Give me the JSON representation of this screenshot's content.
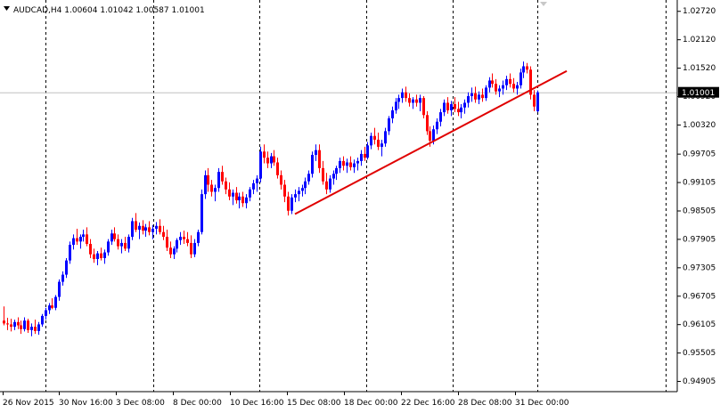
{
  "chart_header": {
    "title": "AUDCAD,H4  1.00604 1.01042 1.00587 1.01001"
  },
  "colors": {
    "bull": "#0000ff",
    "bear": "#ff0000",
    "trendline": "#e00000",
    "grid": "#000000",
    "current_price_line": "#c0c0c0",
    "current_price_box": "#000000",
    "background": "#ffffff"
  },
  "chart_data": {
    "type": "candlestick",
    "symbol": "AUDCAD",
    "timeframe": "H4",
    "current_price": "1.01001",
    "ylim": [
      0.9468,
      1.0295
    ],
    "y_ticks": [
      "1.02720",
      "1.02120",
      "1.01520",
      "1.00920",
      "1.00320",
      "0.99705",
      "0.99105",
      "0.98505",
      "0.97905",
      "0.97305",
      "0.96705",
      "0.96105",
      "0.95505",
      "0.94905"
    ],
    "y_tick_values": [
      1.0272,
      1.0212,
      1.0152,
      1.0092,
      1.0032,
      0.99705,
      0.99105,
      0.98505,
      0.97905,
      0.97305,
      0.96705,
      0.96105,
      0.95505,
      0.94905
    ],
    "x_ticks": [
      "26 Nov 2015",
      "30 Nov 16:00",
      "3 Dec 08:00",
      "8 Dec 00:00",
      "10 Dec 16:00",
      "15 Dec 08:00",
      "18 Dec 00:00",
      "22 Dec 16:00",
      "28 Dec 08:00",
      "31 Dec 00:00"
    ],
    "trendline": {
      "start": [
        0.9843
      ],
      "end": [
        1.0145
      ]
    },
    "candles": [
      {
        "o": 0.9618,
        "h": 0.9648,
        "l": 0.9608,
        "c": 0.9612
      },
      {
        "o": 0.9612,
        "h": 0.9624,
        "l": 0.9598,
        "c": 0.961
      },
      {
        "o": 0.961,
        "h": 0.9622,
        "l": 0.9595,
        "c": 0.9605
      },
      {
        "o": 0.9605,
        "h": 0.962,
        "l": 0.9598,
        "c": 0.9615
      },
      {
        "o": 0.9615,
        "h": 0.9625,
        "l": 0.96,
        "c": 0.9608
      },
      {
        "o": 0.9608,
        "h": 0.9618,
        "l": 0.959,
        "c": 0.96
      },
      {
        "o": 0.96,
        "h": 0.9625,
        "l": 0.9595,
        "c": 0.9618
      },
      {
        "o": 0.9618,
        "h": 0.9622,
        "l": 0.9592,
        "c": 0.9598
      },
      {
        "o": 0.9598,
        "h": 0.9612,
        "l": 0.9585,
        "c": 0.9605
      },
      {
        "o": 0.9605,
        "h": 0.962,
        "l": 0.959,
        "c": 0.9596
      },
      {
        "o": 0.9596,
        "h": 0.9615,
        "l": 0.9588,
        "c": 0.961
      },
      {
        "o": 0.961,
        "h": 0.9632,
        "l": 0.9605,
        "c": 0.9628
      },
      {
        "o": 0.9628,
        "h": 0.9645,
        "l": 0.962,
        "c": 0.964
      },
      {
        "o": 0.964,
        "h": 0.9655,
        "l": 0.9632,
        "c": 0.965
      },
      {
        "o": 0.965,
        "h": 0.9665,
        "l": 0.9642,
        "c": 0.9645
      },
      {
        "o": 0.9645,
        "h": 0.9672,
        "l": 0.964,
        "c": 0.9668
      },
      {
        "o": 0.9668,
        "h": 0.9705,
        "l": 0.966,
        "c": 0.97
      },
      {
        "o": 0.97,
        "h": 0.9722,
        "l": 0.9692,
        "c": 0.9715
      },
      {
        "o": 0.9715,
        "h": 0.975,
        "l": 0.9708,
        "c": 0.9745
      },
      {
        "o": 0.9745,
        "h": 0.9785,
        "l": 0.9738,
        "c": 0.9778
      },
      {
        "o": 0.9778,
        "h": 0.98,
        "l": 0.9768,
        "c": 0.9792
      },
      {
        "o": 0.9792,
        "h": 0.9812,
        "l": 0.9778,
        "c": 0.9785
      },
      {
        "o": 0.9785,
        "h": 0.98,
        "l": 0.977,
        "c": 0.9795
      },
      {
        "o": 0.9795,
        "h": 0.981,
        "l": 0.9785,
        "c": 0.98
      },
      {
        "o": 0.98,
        "h": 0.9815,
        "l": 0.9775,
        "c": 0.978
      },
      {
        "o": 0.978,
        "h": 0.979,
        "l": 0.975,
        "c": 0.9758
      },
      {
        "o": 0.9758,
        "h": 0.977,
        "l": 0.974,
        "c": 0.9748
      },
      {
        "o": 0.9748,
        "h": 0.9765,
        "l": 0.9735,
        "c": 0.976
      },
      {
        "o": 0.976,
        "h": 0.9772,
        "l": 0.9745,
        "c": 0.975
      },
      {
        "o": 0.975,
        "h": 0.9768,
        "l": 0.9738,
        "c": 0.9762
      },
      {
        "o": 0.9762,
        "h": 0.979,
        "l": 0.9755,
        "c": 0.9785
      },
      {
        "o": 0.9785,
        "h": 0.981,
        "l": 0.9778,
        "c": 0.9802
      },
      {
        "o": 0.9802,
        "h": 0.9815,
        "l": 0.9785,
        "c": 0.979
      },
      {
        "o": 0.979,
        "h": 0.98,
        "l": 0.9768,
        "c": 0.9775
      },
      {
        "o": 0.9775,
        "h": 0.979,
        "l": 0.976,
        "c": 0.9782
      },
      {
        "o": 0.9782,
        "h": 0.9795,
        "l": 0.9765,
        "c": 0.977
      },
      {
        "o": 0.977,
        "h": 0.98,
        "l": 0.9762,
        "c": 0.9795
      },
      {
        "o": 0.9795,
        "h": 0.9835,
        "l": 0.9788,
        "c": 0.9828
      },
      {
        "o": 0.9828,
        "h": 0.9845,
        "l": 0.9805,
        "c": 0.981
      },
      {
        "o": 0.981,
        "h": 0.9825,
        "l": 0.979,
        "c": 0.9818
      },
      {
        "o": 0.9818,
        "h": 0.983,
        "l": 0.98,
        "c": 0.9808
      },
      {
        "o": 0.9808,
        "h": 0.9822,
        "l": 0.9795,
        "c": 0.9815
      },
      {
        "o": 0.9815,
        "h": 0.9828,
        "l": 0.9798,
        "c": 0.9805
      },
      {
        "o": 0.9805,
        "h": 0.982,
        "l": 0.979,
        "c": 0.9812
      },
      {
        "o": 0.9812,
        "h": 0.9826,
        "l": 0.98,
        "c": 0.9818
      },
      {
        "o": 0.9818,
        "h": 0.9832,
        "l": 0.98,
        "c": 0.9805
      },
      {
        "o": 0.9805,
        "h": 0.9818,
        "l": 0.9788,
        "c": 0.9795
      },
      {
        "o": 0.9795,
        "h": 0.981,
        "l": 0.9765,
        "c": 0.9772
      },
      {
        "o": 0.9772,
        "h": 0.9785,
        "l": 0.975,
        "c": 0.9758
      },
      {
        "o": 0.9758,
        "h": 0.9775,
        "l": 0.9748,
        "c": 0.977
      },
      {
        "o": 0.977,
        "h": 0.9792,
        "l": 0.9762,
        "c": 0.9788
      },
      {
        "o": 0.9788,
        "h": 0.9805,
        "l": 0.9778,
        "c": 0.9795
      },
      {
        "o": 0.9795,
        "h": 0.9808,
        "l": 0.978,
        "c": 0.979
      },
      {
        "o": 0.979,
        "h": 0.9805,
        "l": 0.9775,
        "c": 0.9782
      },
      {
        "o": 0.9782,
        "h": 0.9798,
        "l": 0.975,
        "c": 0.9758
      },
      {
        "o": 0.9758,
        "h": 0.979,
        "l": 0.9752,
        "c": 0.9782
      },
      {
        "o": 0.9782,
        "h": 0.981,
        "l": 0.9775,
        "c": 0.9805
      },
      {
        "o": 0.9805,
        "h": 0.9895,
        "l": 0.98,
        "c": 0.9885
      },
      {
        "o": 0.9885,
        "h": 0.9935,
        "l": 0.9875,
        "c": 0.9925
      },
      {
        "o": 0.9925,
        "h": 0.994,
        "l": 0.989,
        "c": 0.9905
      },
      {
        "o": 0.9905,
        "h": 0.9915,
        "l": 0.988,
        "c": 0.989
      },
      {
        "o": 0.989,
        "h": 0.9905,
        "l": 0.987,
        "c": 0.9898
      },
      {
        "o": 0.9898,
        "h": 0.994,
        "l": 0.989,
        "c": 0.9932
      },
      {
        "o": 0.9932,
        "h": 0.9945,
        "l": 0.9905,
        "c": 0.9912
      },
      {
        "o": 0.9912,
        "h": 0.992,
        "l": 0.9885,
        "c": 0.9895
      },
      {
        "o": 0.9895,
        "h": 0.991,
        "l": 0.9872,
        "c": 0.988
      },
      {
        "o": 0.988,
        "h": 0.9895,
        "l": 0.9862,
        "c": 0.9888
      },
      {
        "o": 0.9888,
        "h": 0.99,
        "l": 0.9865,
        "c": 0.9872
      },
      {
        "o": 0.9872,
        "h": 0.9888,
        "l": 0.9855,
        "c": 0.988
      },
      {
        "o": 0.988,
        "h": 0.989,
        "l": 0.9858,
        "c": 0.9866
      },
      {
        "o": 0.9866,
        "h": 0.9885,
        "l": 0.9855,
        "c": 0.9878
      },
      {
        "o": 0.9878,
        "h": 0.99,
        "l": 0.987,
        "c": 0.9895
      },
      {
        "o": 0.9895,
        "h": 0.9915,
        "l": 0.9885,
        "c": 0.9908
      },
      {
        "o": 0.9908,
        "h": 0.9925,
        "l": 0.989,
        "c": 0.9918
      },
      {
        "o": 0.9918,
        "h": 0.9985,
        "l": 0.991,
        "c": 0.9975
      },
      {
        "o": 0.9975,
        "h": 0.999,
        "l": 0.995,
        "c": 0.9962
      },
      {
        "o": 0.9962,
        "h": 0.9975,
        "l": 0.994,
        "c": 0.995
      },
      {
        "o": 0.995,
        "h": 0.9972,
        "l": 0.994,
        "c": 0.9965
      },
      {
        "o": 0.9965,
        "h": 0.9978,
        "l": 0.9945,
        "c": 0.9952
      },
      {
        "o": 0.9952,
        "h": 0.9962,
        "l": 0.9918,
        "c": 0.9925
      },
      {
        "o": 0.9925,
        "h": 0.9935,
        "l": 0.9895,
        "c": 0.9905
      },
      {
        "o": 0.9905,
        "h": 0.9915,
        "l": 0.9868,
        "c": 0.988
      },
      {
        "o": 0.988,
        "h": 0.989,
        "l": 0.984,
        "c": 0.985
      },
      {
        "o": 0.985,
        "h": 0.9885,
        "l": 0.9843,
        "c": 0.9878
      },
      {
        "o": 0.9878,
        "h": 0.9895,
        "l": 0.9868,
        "c": 0.9885
      },
      {
        "o": 0.9885,
        "h": 0.99,
        "l": 0.987,
        "c": 0.9892
      },
      {
        "o": 0.9892,
        "h": 0.9905,
        "l": 0.988,
        "c": 0.9898
      },
      {
        "o": 0.9898,
        "h": 0.992,
        "l": 0.9885,
        "c": 0.9912
      },
      {
        "o": 0.9912,
        "h": 0.9935,
        "l": 0.9905,
        "c": 0.9928
      },
      {
        "o": 0.9928,
        "h": 0.9975,
        "l": 0.992,
        "c": 0.9968
      },
      {
        "o": 0.9968,
        "h": 0.999,
        "l": 0.9955,
        "c": 0.9978
      },
      {
        "o": 0.9978,
        "h": 0.999,
        "l": 0.993,
        "c": 0.994
      },
      {
        "o": 0.994,
        "h": 0.9955,
        "l": 0.9905,
        "c": 0.9912
      },
      {
        "o": 0.9912,
        "h": 0.993,
        "l": 0.9885,
        "c": 0.9895
      },
      {
        "o": 0.9895,
        "h": 0.9925,
        "l": 0.9888,
        "c": 0.9918
      },
      {
        "o": 0.9918,
        "h": 0.9935,
        "l": 0.9905,
        "c": 0.9928
      },
      {
        "o": 0.9928,
        "h": 0.9945,
        "l": 0.9915,
        "c": 0.994
      },
      {
        "o": 0.994,
        "h": 0.9962,
        "l": 0.993,
        "c": 0.9955
      },
      {
        "o": 0.9955,
        "h": 0.9965,
        "l": 0.9935,
        "c": 0.9945
      },
      {
        "o": 0.9945,
        "h": 0.996,
        "l": 0.993,
        "c": 0.9952
      },
      {
        "o": 0.9952,
        "h": 0.9965,
        "l": 0.9935,
        "c": 0.9942
      },
      {
        "o": 0.9942,
        "h": 0.9958,
        "l": 0.993,
        "c": 0.995
      },
      {
        "o": 0.995,
        "h": 0.9962,
        "l": 0.9935,
        "c": 0.9955
      },
      {
        "o": 0.9955,
        "h": 0.9978,
        "l": 0.9945,
        "c": 0.997
      },
      {
        "o": 0.997,
        "h": 0.9985,
        "l": 0.9955,
        "c": 0.9962
      },
      {
        "o": 0.9962,
        "h": 0.9995,
        "l": 0.9958,
        "c": 0.9988
      },
      {
        "o": 0.9988,
        "h": 1.0015,
        "l": 0.998,
        "c": 1.0008
      },
      {
        "o": 1.0008,
        "h": 1.0025,
        "l": 0.999,
        "c": 1.0
      },
      {
        "o": 1.0,
        "h": 1.0015,
        "l": 0.9978,
        "c": 0.9985
      },
      {
        "o": 0.9985,
        "h": 1.0,
        "l": 0.9965,
        "c": 0.9992
      },
      {
        "o": 0.9992,
        "h": 1.0025,
        "l": 0.9985,
        "c": 1.0018
      },
      {
        "o": 1.0018,
        "h": 1.005,
        "l": 1.001,
        "c": 1.0045
      },
      {
        "o": 1.0045,
        "h": 1.007,
        "l": 1.0035,
        "c": 1.0062
      },
      {
        "o": 1.0062,
        "h": 1.0088,
        "l": 1.0055,
        "c": 1.008
      },
      {
        "o": 1.008,
        "h": 1.0095,
        "l": 1.0065,
        "c": 1.0088
      },
      {
        "o": 1.0088,
        "h": 1.0108,
        "l": 1.0078,
        "c": 1.01
      },
      {
        "o": 1.01,
        "h": 1.0112,
        "l": 1.008,
        "c": 1.0088
      },
      {
        "o": 1.0088,
        "h": 1.0098,
        "l": 1.007,
        "c": 1.0078
      },
      {
        "o": 1.0078,
        "h": 1.009,
        "l": 1.0065,
        "c": 1.0085
      },
      {
        "o": 1.0085,
        "h": 1.0095,
        "l": 1.007,
        "c": 1.0078
      },
      {
        "o": 1.0078,
        "h": 1.0095,
        "l": 1.006,
        "c": 1.0088
      },
      {
        "o": 1.0088,
        "h": 1.0092,
        "l": 1.0045,
        "c": 1.0052
      },
      {
        "o": 1.0052,
        "h": 1.006,
        "l": 1.001,
        "c": 1.0018
      },
      {
        "o": 1.0018,
        "h": 1.0028,
        "l": 0.9985,
        "c": 0.9998
      },
      {
        "o": 0.9998,
        "h": 1.003,
        "l": 0.999,
        "c": 1.0022
      },
      {
        "o": 1.0022,
        "h": 1.0045,
        "l": 1.0012,
        "c": 1.0038
      },
      {
        "o": 1.0038,
        "h": 1.0065,
        "l": 1.0028,
        "c": 1.0058
      },
      {
        "o": 1.0058,
        "h": 1.0085,
        "l": 1.005,
        "c": 1.0078
      },
      {
        "o": 1.0078,
        "h": 1.009,
        "l": 1.0055,
        "c": 1.0062
      },
      {
        "o": 1.0062,
        "h": 1.0082,
        "l": 1.005,
        "c": 1.0075
      },
      {
        "o": 1.0075,
        "h": 1.009,
        "l": 1.0058,
        "c": 1.0065
      },
      {
        "o": 1.0065,
        "h": 1.008,
        "l": 1.005,
        "c": 1.0058
      },
      {
        "o": 1.0058,
        "h": 1.0075,
        "l": 1.0045,
        "c": 1.0068
      },
      {
        "o": 1.0068,
        "h": 1.0085,
        "l": 1.0055,
        "c": 1.0078
      },
      {
        "o": 1.0078,
        "h": 1.01,
        "l": 1.0068,
        "c": 1.0092
      },
      {
        "o": 1.0092,
        "h": 1.011,
        "l": 1.008,
        "c": 1.0098
      },
      {
        "o": 1.0098,
        "h": 1.0112,
        "l": 1.0078,
        "c": 1.0085
      },
      {
        "o": 1.0085,
        "h": 1.0102,
        "l": 1.0075,
        "c": 1.0095
      },
      {
        "o": 1.0095,
        "h": 1.0108,
        "l": 1.008,
        "c": 1.0088
      },
      {
        "o": 1.0088,
        "h": 1.0115,
        "l": 1.0082,
        "c": 1.011
      },
      {
        "o": 1.011,
        "h": 1.0132,
        "l": 1.01,
        "c": 1.0125
      },
      {
        "o": 1.0125,
        "h": 1.014,
        "l": 1.011,
        "c": 1.0118
      },
      {
        "o": 1.0118,
        "h": 1.0128,
        "l": 1.0095,
        "c": 1.0102
      },
      {
        "o": 1.0102,
        "h": 1.0115,
        "l": 1.009,
        "c": 1.0108
      },
      {
        "o": 1.0108,
        "h": 1.0125,
        "l": 1.0095,
        "c": 1.0115
      },
      {
        "o": 1.0115,
        "h": 1.0135,
        "l": 1.0105,
        "c": 1.0128
      },
      {
        "o": 1.0128,
        "h": 1.014,
        "l": 1.011,
        "c": 1.0118
      },
      {
        "o": 1.0118,
        "h": 1.013,
        "l": 1.01,
        "c": 1.0108
      },
      {
        "o": 1.0108,
        "h": 1.0122,
        "l": 1.0095,
        "c": 1.0115
      },
      {
        "o": 1.0115,
        "h": 1.015,
        "l": 1.0108,
        "c": 1.0142
      },
      {
        "o": 1.0142,
        "h": 1.0165,
        "l": 1.013,
        "c": 1.0155
      },
      {
        "o": 1.0155,
        "h": 1.0162,
        "l": 1.014,
        "c": 1.0148
      },
      {
        "o": 1.0148,
        "h": 1.0155,
        "l": 1.0085,
        "c": 1.0095
      },
      {
        "o": 1.0095,
        "h": 1.0105,
        "l": 1.006,
        "c": 1.007
      },
      {
        "o": 1.006,
        "h": 1.0104,
        "l": 1.0058,
        "c": 1.01
      }
    ]
  }
}
